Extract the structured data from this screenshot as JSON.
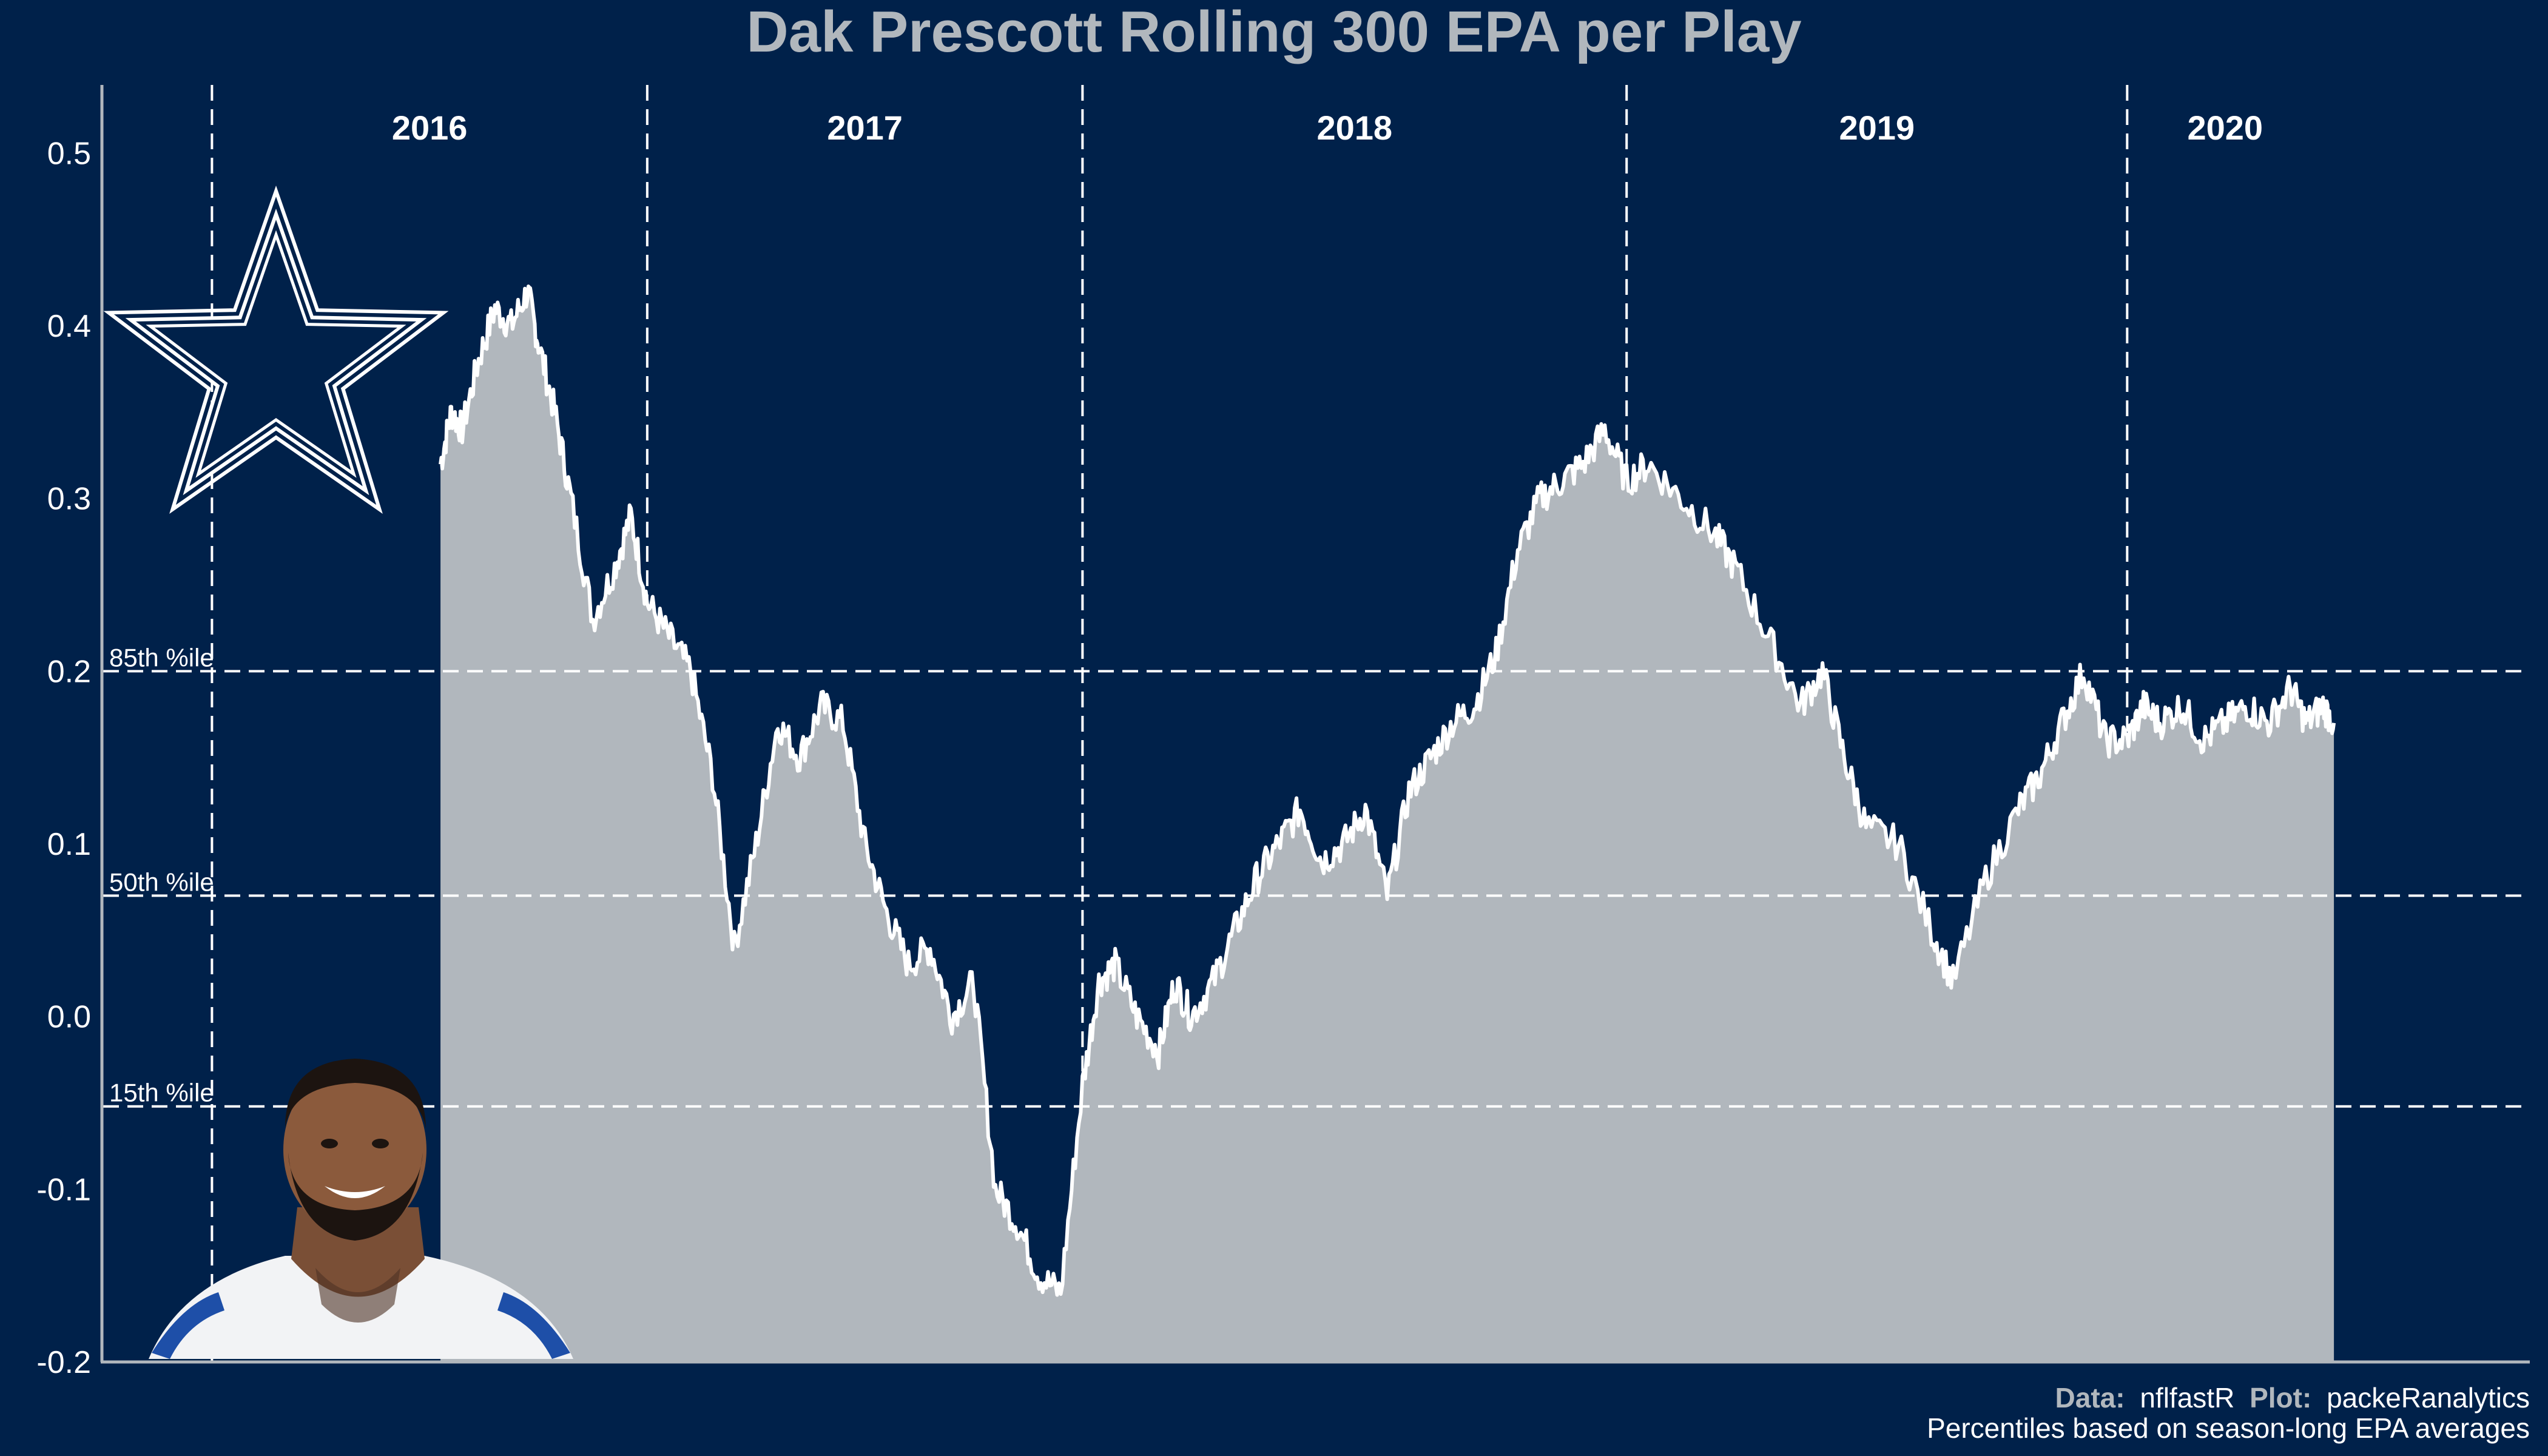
{
  "colors": {
    "background": "#00214a",
    "area_fill": "#b1b7bd",
    "line": "#ffffff",
    "title": "#b1b7bd",
    "axis": "#b1b7bd",
    "text": "#ffffff",
    "star_fill": "#00214a",
    "star_outline": "#ffffff"
  },
  "logo": {
    "icon": "dallas-star-logo"
  },
  "photo": {
    "icon": "player-headshot"
  },
  "caption": {
    "data_bold": "Data:",
    "data_source": "nflfastR",
    "plot_bold": "Plot:",
    "plot_author": "packeRanalytics",
    "note": "Percentiles based on season-long EPA averages"
  },
  "chart_data": {
    "type": "area",
    "title": "Dak Prescott Rolling 300 EPA per Play",
    "xlabel": "",
    "ylabel": "",
    "ylim": [
      -0.2,
      0.55
    ],
    "xlim": [
      0,
      22.3
    ],
    "yticks": [
      "-0.2",
      "-0.1",
      "0.0",
      "0.1",
      "0.2",
      "0.3",
      "0.4",
      "0.5"
    ],
    "ytick_values": [
      -0.2,
      -0.1,
      0,
      0.1,
      0.2,
      0.3,
      0.4,
      0.5
    ],
    "season_dividers": [
      1,
      5,
      9,
      14,
      18.6
    ],
    "seasons": [
      {
        "label": "2016",
        "x": 3
      },
      {
        "label": "2017",
        "x": 7
      },
      {
        "label": "2018",
        "x": 11.5
      },
      {
        "label": "2019",
        "x": 16.3
      },
      {
        "label": "2020",
        "x": 19.5
      }
    ],
    "reference_lines": [
      {
        "label": "85th %ile",
        "y": 0.2
      },
      {
        "label": "50th %ile",
        "y": 0.07
      },
      {
        "label": "15th %ile",
        "y": -0.052
      }
    ],
    "grid": false,
    "series": [
      {
        "x": [
          3.1,
          3.2,
          3.3,
          3.45,
          3.6,
          3.75,
          3.9,
          4.0,
          4.15,
          4.3,
          4.5,
          4.7,
          4.85,
          5.0,
          5.2,
          5.4,
          5.6,
          5.8,
          6.0,
          6.2,
          6.4,
          6.6,
          6.8,
          7.0,
          7.2,
          7.4,
          7.6,
          7.8,
          8.0,
          8.2,
          8.4,
          8.6,
          8.8,
          9.0,
          9.15,
          9.3,
          9.5,
          9.7,
          9.85,
          10.0,
          10.2,
          10.4,
          10.6,
          10.8,
          11.0,
          11.2,
          11.4,
          11.6,
          11.8,
          12.0,
          12.2,
          12.4,
          12.6,
          12.8,
          13.0,
          13.2,
          13.4,
          13.6,
          13.8,
          14.0,
          14.2,
          14.5,
          14.8,
          15.0,
          15.3,
          15.6,
          15.8,
          16.0,
          16.2,
          16.5,
          16.8,
          17.0,
          17.3,
          17.6,
          17.8,
          18.0,
          18.2,
          18.4,
          18.6,
          18.75,
          18.9,
          19.1,
          19.3,
          19.5,
          19.7,
          19.9,
          20.1,
          20.25,
          20.4,
          20.5
        ],
        "y": [
          0.32,
          0.35,
          0.34,
          0.38,
          0.41,
          0.4,
          0.42,
          0.39,
          0.35,
          0.3,
          0.23,
          0.26,
          0.29,
          0.24,
          0.22,
          0.2,
          0.14,
          0.04,
          0.1,
          0.17,
          0.15,
          0.18,
          0.17,
          0.1,
          0.06,
          0.03,
          0.04,
          0.0,
          0.02,
          -0.1,
          -0.12,
          -0.15,
          -0.16,
          -0.04,
          0.02,
          0.03,
          0.0,
          -0.02,
          0.02,
          0.0,
          0.02,
          0.05,
          0.08,
          0.1,
          0.12,
          0.09,
          0.1,
          0.12,
          0.07,
          0.13,
          0.15,
          0.17,
          0.18,
          0.21,
          0.27,
          0.3,
          0.31,
          0.32,
          0.34,
          0.31,
          0.32,
          0.3,
          0.28,
          0.26,
          0.22,
          0.18,
          0.2,
          0.15,
          0.11,
          0.1,
          0.05,
          0.02,
          0.08,
          0.12,
          0.14,
          0.17,
          0.2,
          0.16,
          0.16,
          0.18,
          0.17,
          0.18,
          0.16,
          0.17,
          0.18,
          0.17,
          0.19,
          0.17,
          0.18,
          0.17
        ]
      }
    ]
  }
}
